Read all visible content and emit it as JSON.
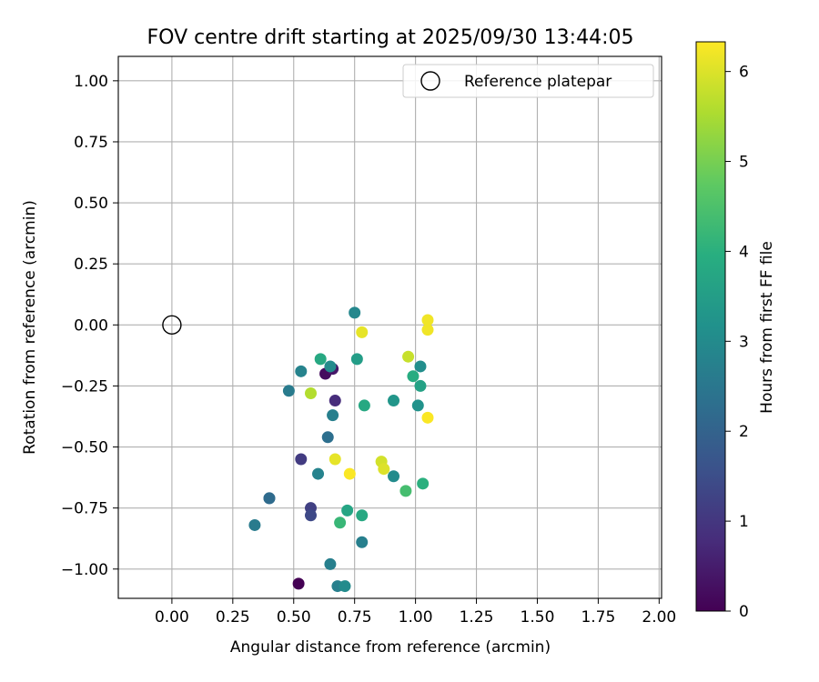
{
  "chart_data": {
    "type": "scatter",
    "title": "FOV centre drift starting at 2025/09/30 13:44:05",
    "xlabel": "Angular distance from reference (arcmin)",
    "ylabel": "Rotation from reference (arcmin)",
    "xlim": [
      -0.22,
      2.01
    ],
    "ylim": [
      -1.12,
      1.1
    ],
    "xticks": [
      0.0,
      0.25,
      0.5,
      0.75,
      1.0,
      1.25,
      1.5,
      1.75,
      2.0
    ],
    "xtick_labels": [
      "0.00",
      "0.25",
      "0.50",
      "0.75",
      "1.00",
      "1.25",
      "1.50",
      "1.75",
      "2.00"
    ],
    "yticks": [
      -1.0,
      -0.75,
      -0.5,
      -0.25,
      0.0,
      0.25,
      0.5,
      0.75,
      1.0
    ],
    "ytick_labels": [
      "−1.00",
      "−0.75",
      "−0.50",
      "−0.25",
      "0.00",
      "0.25",
      "0.50",
      "0.75",
      "1.00"
    ],
    "grid": true,
    "legend": {
      "placement": "top-right",
      "entries": [
        "Reference platepar"
      ]
    },
    "reference_point": {
      "x": 0.0,
      "y": 0.0,
      "label": "Reference platepar"
    },
    "colorbar": {
      "label": "Hours from first FF file",
      "min": 0,
      "max": 6.33,
      "ticks": [
        0,
        1,
        2,
        3,
        4,
        5,
        6
      ],
      "tick_labels": [
        "0",
        "1",
        "2",
        "3",
        "4",
        "5",
        "6"
      ],
      "colormap": "viridis"
    },
    "series": [
      {
        "name": "FOV centre",
        "points": [
          {
            "x": 0.52,
            "y": -1.06,
            "hours": 0.0
          },
          {
            "x": 0.63,
            "y": -0.2,
            "hours": 0.2
          },
          {
            "x": 0.66,
            "y": -0.18,
            "hours": 0.4
          },
          {
            "x": 0.67,
            "y": -0.31,
            "hours": 0.8
          },
          {
            "x": 0.53,
            "y": -0.55,
            "hours": 1.1
          },
          {
            "x": 0.57,
            "y": -0.75,
            "hours": 1.2
          },
          {
            "x": 0.57,
            "y": -0.78,
            "hours": 1.4
          },
          {
            "x": 0.4,
            "y": -0.71,
            "hours": 2.1
          },
          {
            "x": 0.4,
            "y": -0.71,
            "hours": 2.2
          },
          {
            "x": 0.64,
            "y": -0.46,
            "hours": 2.3
          },
          {
            "x": 0.34,
            "y": -0.82,
            "hours": 2.6
          },
          {
            "x": 0.48,
            "y": -0.27,
            "hours": 2.6
          },
          {
            "x": 0.66,
            "y": -0.37,
            "hours": 2.7
          },
          {
            "x": 0.65,
            "y": -0.98,
            "hours": 2.7
          },
          {
            "x": 0.78,
            "y": -0.89,
            "hours": 2.7
          },
          {
            "x": 0.68,
            "y": -1.07,
            "hours": 2.7
          },
          {
            "x": 0.6,
            "y": -0.61,
            "hours": 2.8
          },
          {
            "x": 0.53,
            "y": -0.19,
            "hours": 2.8
          },
          {
            "x": 0.75,
            "y": 0.05,
            "hours": 2.9
          },
          {
            "x": 0.71,
            "y": -1.07,
            "hours": 3.0
          },
          {
            "x": 0.65,
            "y": -0.17,
            "hours": 3.0
          },
          {
            "x": 0.91,
            "y": -0.62,
            "hours": 3.0
          },
          {
            "x": 1.02,
            "y": -0.17,
            "hours": 3.1
          },
          {
            "x": 1.01,
            "y": -0.33,
            "hours": 3.2
          },
          {
            "x": 0.91,
            "y": -0.31,
            "hours": 3.3
          },
          {
            "x": 0.76,
            "y": -0.14,
            "hours": 3.5
          },
          {
            "x": 1.02,
            "y": -0.25,
            "hours": 3.6
          },
          {
            "x": 0.72,
            "y": -0.76,
            "hours": 3.7
          },
          {
            "x": 0.61,
            "y": -0.14,
            "hours": 3.8
          },
          {
            "x": 0.79,
            "y": -0.33,
            "hours": 3.8
          },
          {
            "x": 0.78,
            "y": -0.78,
            "hours": 3.8
          },
          {
            "x": 0.99,
            "y": -0.21,
            "hours": 3.9
          },
          {
            "x": 1.03,
            "y": -0.65,
            "hours": 4.0
          },
          {
            "x": 0.69,
            "y": -0.81,
            "hours": 4.2
          },
          {
            "x": 0.96,
            "y": -0.68,
            "hours": 4.4
          },
          {
            "x": 0.57,
            "y": -0.28,
            "hours": 5.6
          },
          {
            "x": 0.97,
            "y": -0.13,
            "hours": 5.8
          },
          {
            "x": 0.86,
            "y": -0.56,
            "hours": 5.9
          },
          {
            "x": 0.87,
            "y": -0.59,
            "hours": 6.0
          },
          {
            "x": 0.67,
            "y": -0.55,
            "hours": 6.1
          },
          {
            "x": 0.78,
            "y": -0.03,
            "hours": 6.1
          },
          {
            "x": 1.05,
            "y": -0.02,
            "hours": 6.2
          },
          {
            "x": 1.05,
            "y": 0.02,
            "hours": 6.2
          },
          {
            "x": 0.73,
            "y": -0.61,
            "hours": 6.3
          },
          {
            "x": 1.05,
            "y": -0.38,
            "hours": 6.3
          }
        ]
      }
    ]
  }
}
